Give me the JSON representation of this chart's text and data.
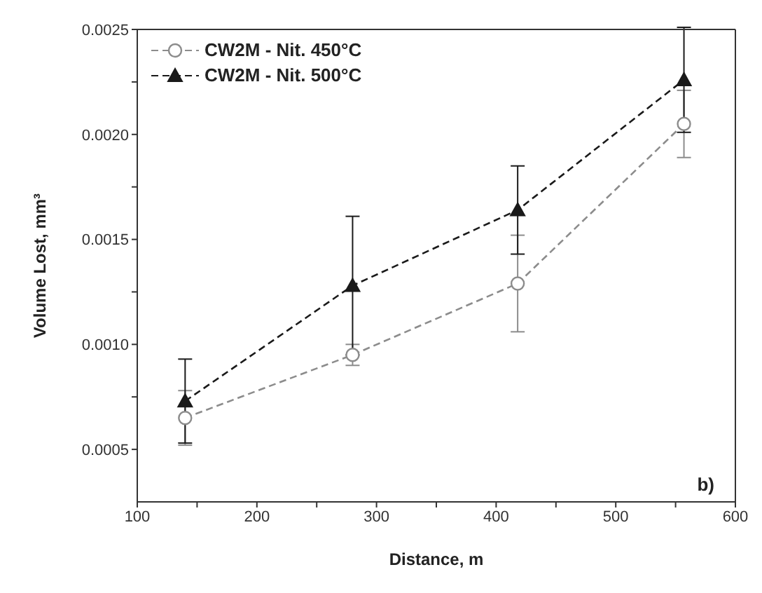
{
  "chart_data": {
    "type": "line",
    "xlabel": "Distance, m",
    "ylabel": "Volume Lost, mm³",
    "annotations": [
      "b)"
    ],
    "x": [
      140,
      280,
      418,
      557
    ],
    "series": [
      {
        "name": "CW2M - Nit. 450°C",
        "color": "#8c8c8c",
        "marker": "circle",
        "values": [
          0.00065,
          0.00095,
          0.00129,
          0.00205
        ],
        "errors": [
          0.00013,
          5e-05,
          0.00023,
          0.00016
        ]
      },
      {
        "name": "CW2M - Nit. 500°C",
        "color": "#1a1a1a",
        "marker": "triangle",
        "values": [
          0.00073,
          0.00128,
          0.00164,
          0.00226
        ],
        "errors": [
          0.0002,
          0.00033,
          0.00021,
          0.00025
        ]
      }
    ],
    "xlim": [
      100,
      600
    ],
    "xticks": [
      100,
      {
        "value": 150,
        "label": null
      },
      200,
      {
        "value": 250,
        "label": null
      },
      300,
      {
        "value": 350,
        "label": null
      },
      400,
      {
        "value": 450,
        "label": null
      },
      500,
      {
        "value": 550,
        "label": null
      },
      600
    ],
    "ylim": [
      0.00025,
      0.0025
    ],
    "yticks": [
      {
        "value": 0.0005,
        "label": "0.0005"
      },
      {
        "value": 0.00075,
        "label": null
      },
      {
        "value": 0.001,
        "label": "0.0010"
      },
      {
        "value": 0.00125,
        "label": null
      },
      {
        "value": 0.0015,
        "label": "0.0015"
      },
      {
        "value": 0.00175,
        "label": null
      },
      {
        "value": 0.002,
        "label": "0.0020"
      },
      {
        "value": 0.00225,
        "label": null
      },
      {
        "value": 0.0025,
        "label": "0.0025"
      }
    ],
    "grid": false,
    "legend": "top left",
    "line_style": "dashed"
  }
}
